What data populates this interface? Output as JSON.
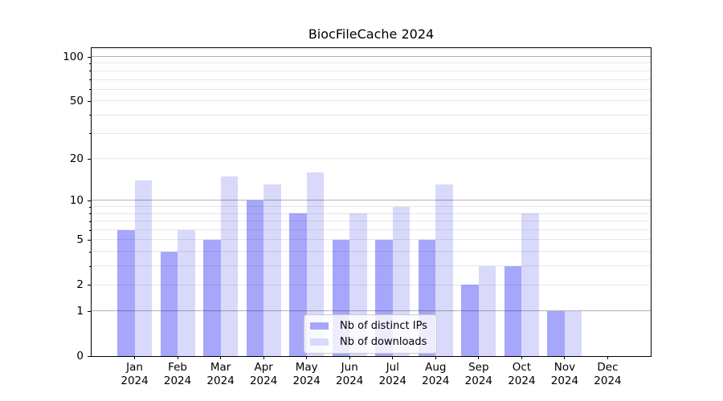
{
  "chart_data": {
    "type": "bar",
    "title": "BiocFileCache 2024",
    "year_label": "2024",
    "categories": [
      "Jan",
      "Feb",
      "Mar",
      "Apr",
      "May",
      "Jun",
      "Jul",
      "Aug",
      "Sep",
      "Oct",
      "Nov",
      "Dec"
    ],
    "series": [
      {
        "name": "Nb of distinct IPs",
        "color": "#a6a6fa",
        "values": [
          6,
          4,
          5,
          10,
          8,
          5,
          5,
          5,
          2,
          3,
          1,
          0
        ]
      },
      {
        "name": "Nb of downloads",
        "color": "#d9d9fc",
        "values": [
          14,
          6,
          15,
          13,
          16,
          8,
          9,
          13,
          3,
          8,
          1,
          0
        ]
      }
    ],
    "y_axis": {
      "scale": "log1p",
      "min": 0,
      "max": 114,
      "tick_labels": [
        0,
        1,
        2,
        5,
        10,
        20,
        50,
        100
      ],
      "major_gridlines": [
        1,
        10,
        100
      ],
      "minor_gridlines": [
        2,
        3,
        4,
        5,
        6,
        7,
        8,
        9,
        20,
        30,
        40,
        50,
        60,
        70,
        80,
        90
      ],
      "minor_tick_marks": [
        3,
        4,
        6,
        7,
        8,
        9,
        30,
        40,
        60,
        70,
        80,
        90
      ]
    },
    "legend_position": "lower-center",
    "grid": true
  },
  "colors": {
    "bar_dark": "#a6a6fa",
    "bar_light": "#d9d9fc",
    "axis": "#000000",
    "grid_major": "rgba(0,0,0,0.30)",
    "grid_minor": "rgba(0,0,0,0.09)"
  }
}
